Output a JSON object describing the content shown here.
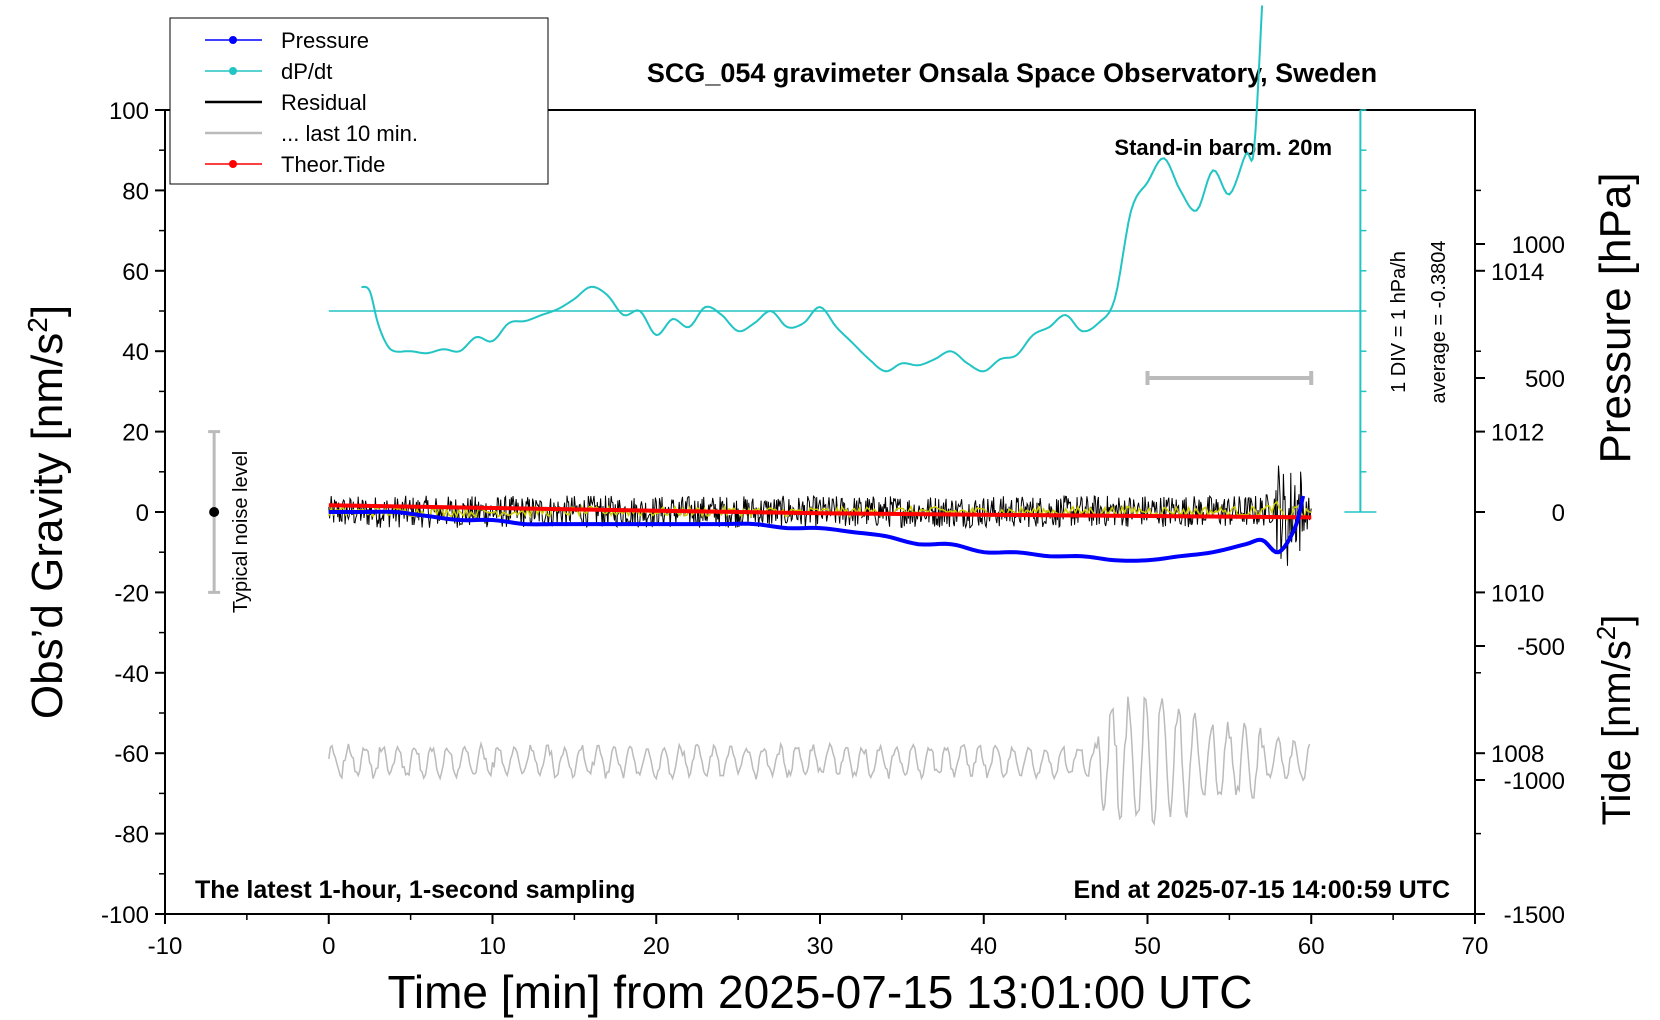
{
  "chart_data": {
    "type": "line",
    "title": "SCG_054 gravimeter Onsala Space Observatory, Sweden",
    "xlabel": "Time [min] from 2025-07-15 13:01:00 UTC",
    "ylabel_left": "Obs’d Gravity [nm/s2]",
    "ylabel_right_pressure": "Pressure [hPa]",
    "ylabel_right_tide": "Tide [nm/s2]",
    "xlim": [
      -10,
      70
    ],
    "ylim": [
      -100,
      100
    ],
    "pressure_ylim": [
      1006,
      1016
    ],
    "tide_ylim": [
      -1500,
      1500
    ],
    "x_ticks": [
      "-10",
      "0",
      "10",
      "20",
      "30",
      "40",
      "50",
      "60",
      "70"
    ],
    "y_ticks": [
      "-100",
      "-80",
      "-60",
      "-40",
      "-20",
      "0",
      "20",
      "40",
      "60",
      "80",
      "100"
    ],
    "pressure_ticks": [
      "1008",
      "1010",
      "1012",
      "1014"
    ],
    "tide_ticks": [
      "-1500",
      "-1000",
      "-500",
      "0",
      "500",
      "1000"
    ],
    "grid": false,
    "legend_position": "top-left",
    "colors": {
      "pressure": "#0000ff",
      "dpdt": "#22c4c4",
      "residual": "#000000",
      "last10": "#bbbbbb",
      "tide": "#ff0000",
      "smoothed_residual": "#cccc00"
    },
    "legend": [
      {
        "label": "Pressure",
        "color": "#0000ff",
        "marker": true
      },
      {
        "label": "dP/dt",
        "color": "#22c4c4",
        "marker": true
      },
      {
        "label": "Residual",
        "color": "#000000",
        "marker": false
      },
      {
        "label": "... last 10 min.",
        "color": "#bbbbbb",
        "marker": false
      },
      {
        "label": "Theor.Tide",
        "color": "#ff0000",
        "marker": true
      }
    ],
    "annotations": {
      "stand_in": "Stand-in barom. 20m",
      "latest": "The latest 1-hour, 1-second sampling",
      "end_at": "End at 2025-07-15 14:00:59 UTC",
      "div_label": "1 DIV = 1 hPa/h",
      "average_label": "average = -0.3804",
      "noise_label": "Typical noise level"
    },
    "series": [
      {
        "name": "Pressure",
        "unit": "hPa",
        "x": [
          0,
          2,
          4,
          6,
          8,
          10,
          12,
          14,
          16,
          18,
          20,
          22,
          24,
          26,
          28,
          30,
          32,
          34,
          36,
          38,
          40,
          42,
          44,
          46,
          48,
          50,
          52,
          54,
          56,
          57,
          58,
          59,
          59.5
        ],
        "values": [
          1011.0,
          1011.0,
          1011.0,
          1010.95,
          1010.9,
          1010.9,
          1010.85,
          1010.85,
          1010.85,
          1010.85,
          1010.85,
          1010.85,
          1010.85,
          1010.85,
          1010.8,
          1010.8,
          1010.75,
          1010.7,
          1010.6,
          1010.6,
          1010.5,
          1010.5,
          1010.45,
          1010.45,
          1010.4,
          1010.4,
          1010.45,
          1010.5,
          1010.6,
          1010.65,
          1010.5,
          1010.8,
          1011.2
        ]
      },
      {
        "name": "dP/dt",
        "unit": "div (1 DIV = 1 hPa/h)",
        "x": [
          2,
          2.5,
          3,
          3.5,
          4,
          5,
          6,
          7,
          8,
          9,
          10,
          11,
          12,
          13,
          14,
          15,
          16,
          17,
          18,
          19,
          20,
          21,
          22,
          23,
          24,
          25,
          26,
          27,
          28,
          29,
          30,
          31,
          32,
          33,
          34,
          35,
          36,
          37,
          38,
          39,
          40,
          41,
          42,
          43,
          44,
          45,
          46,
          47,
          48,
          49,
          50,
          51,
          52,
          53,
          54,
          55,
          56,
          56.5,
          57
        ],
        "values": [
          0.6,
          0.5,
          -0.3,
          -0.8,
          -1.0,
          -1.0,
          -1.05,
          -0.95,
          -1.0,
          -0.65,
          -0.75,
          -0.3,
          -0.25,
          -0.1,
          0.05,
          0.3,
          0.6,
          0.4,
          -0.1,
          0.0,
          -0.6,
          -0.2,
          -0.4,
          0.1,
          -0.1,
          -0.5,
          -0.3,
          0.0,
          -0.4,
          -0.3,
          0.1,
          -0.4,
          -0.8,
          -1.2,
          -1.5,
          -1.3,
          -1.35,
          -1.2,
          -1.0,
          -1.3,
          -1.5,
          -1.2,
          -1.1,
          -0.6,
          -0.4,
          -0.1,
          -0.5,
          -0.3,
          0.3,
          2.5,
          3.2,
          3.8,
          3.0,
          2.5,
          3.5,
          2.9,
          3.9,
          4.0,
          7.6
        ]
      },
      {
        "name": "Residual",
        "unit": "nm/s2",
        "x": [
          0,
          5,
          10,
          15,
          20,
          25,
          30,
          35,
          40,
          45,
          50,
          55,
          57,
          58,
          58.5,
          59,
          59.5,
          60
        ],
        "values": [
          0,
          0.5,
          0,
          1,
          0.5,
          0.5,
          0,
          1,
          0.5,
          1,
          2,
          1,
          2,
          10,
          -20,
          15,
          -5,
          0
        ],
        "noise_amplitude": 4
      },
      {
        "name": "... last 10 min.",
        "unit": "nm/s2 (scaled)",
        "x": [
          50,
          60
        ],
        "values": [
          -62,
          -62
        ]
      },
      {
        "name": "Theor.Tide",
        "unit": "nm/s2",
        "x": [
          0,
          10,
          20,
          30,
          40,
          50,
          60
        ],
        "values": [
          25,
          15,
          5,
          -5,
          -10,
          -15,
          -20
        ]
      }
    ],
    "noise_bar": {
      "x": -7,
      "y_low": -20,
      "y_high": 20,
      "center": 0
    },
    "last10_bar": {
      "x_start": 50,
      "x_end": 60,
      "tide_level": 500
    }
  }
}
